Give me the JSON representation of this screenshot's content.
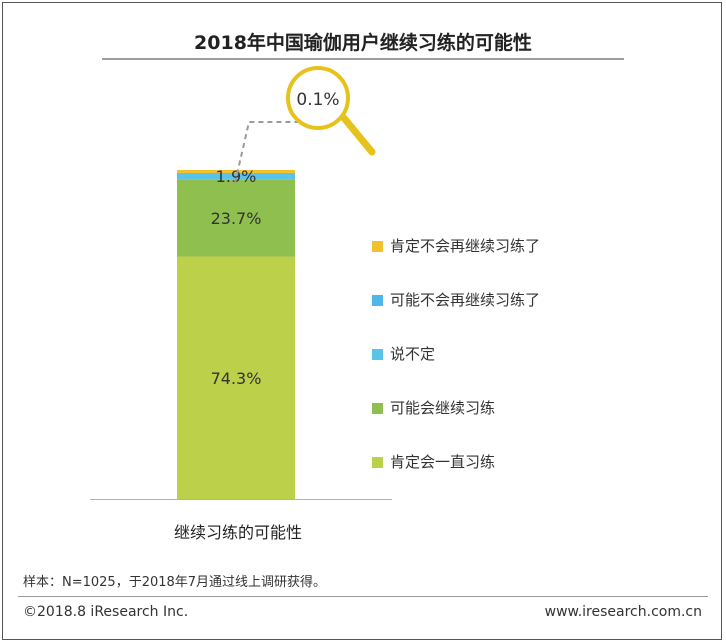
{
  "page": {
    "title": "2018年中国瑜伽用户继续习练的可能性",
    "note": "样本：N=1025，于2018年7月通过线上调研获得。",
    "copyright": "©2018.8 iResearch Inc.",
    "website": "www.iresearch.com.cn"
  },
  "chart_data": {
    "type": "bar",
    "stacked": true,
    "title": "2018年中国瑜伽用户继续习练的可能性",
    "categories": [
      "继续习练的可能性"
    ],
    "series": [
      {
        "name": "肯定会一直习练",
        "values": [
          74.3
        ],
        "label": "74.3%",
        "color": "#bcd04a"
      },
      {
        "name": "可能会继续习练",
        "values": [
          23.7
        ],
        "label": "23.7%",
        "color": "#8fbf4e"
      },
      {
        "name": "说不定",
        "values": [
          1.9
        ],
        "label": "1.9%",
        "color": "#5bc2e8"
      },
      {
        "name": "可能不会再继续习练了",
        "values": [
          0.0
        ],
        "label": "",
        "color": "#4fb6ea"
      },
      {
        "name": "肯定不会再继续习练了",
        "values": [
          0.1
        ],
        "label": "0.1%",
        "color": "#f2c12e"
      }
    ],
    "legend_order": [
      "肯定不会再继续习练了",
      "可能不会再继续习练了",
      "说不定",
      "可能会继续习练",
      "肯定会一直习练"
    ],
    "magnifier_callout": "0.1%",
    "ylim": [
      0,
      100
    ],
    "legend_position": "right",
    "grid": false
  }
}
